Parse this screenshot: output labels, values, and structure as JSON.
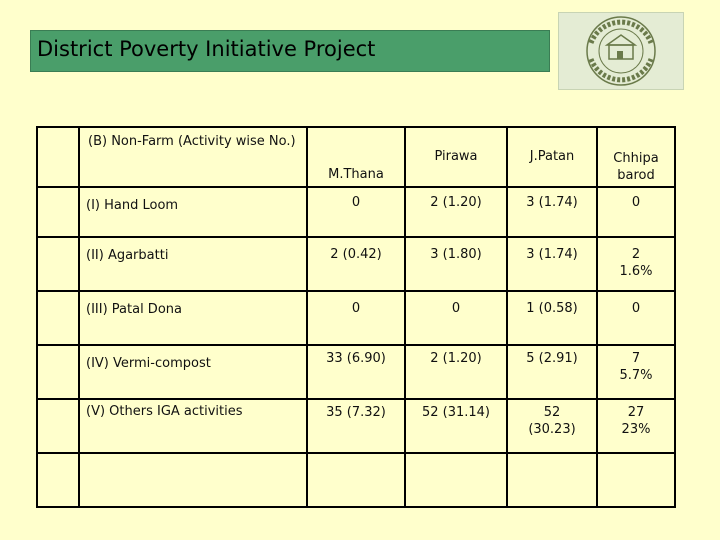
{
  "title": "District Poverty Initiative Project",
  "logo": {
    "name": "indian-institute-for-rural-development-logo",
    "top_text": "INDIAN INSTITUTE FOR",
    "bottom_text": "RURAL DEVELOPMENT"
  },
  "table": {
    "header_label": "(B) Non-Farm (Activity wise No.)",
    "columns": [
      "M.Thana",
      "Pirawa",
      "J.Patan",
      "Chhipa barod"
    ],
    "rows": [
      {
        "label": "(I) Hand Loom",
        "values": [
          "0",
          "2 (1.20)",
          "3 (1.74)",
          "0"
        ]
      },
      {
        "label": "(II) Agarbatti",
        "values": [
          "2 (0.42)",
          "3 (1.80)",
          "3 (1.74)",
          "2 1.6%"
        ]
      },
      {
        "label": "(III) Patal Dona",
        "values": [
          "0",
          "0",
          "1 (0.58)",
          "0"
        ]
      },
      {
        "label": "(IV) Vermi-compost",
        "values": [
          "33 (6.90)",
          "2 (1.20)",
          "5 (2.91)",
          "7 5.7%"
        ]
      },
      {
        "label": "(V) Others  IGA activities",
        "values": [
          "35 (7.32)",
          "52 (31.14)",
          "52 (30.23)",
          "27 23%"
        ]
      }
    ]
  },
  "colors": {
    "background": "#ffffcc",
    "title_bar": "#4a9e6a",
    "border": "#000000"
  }
}
